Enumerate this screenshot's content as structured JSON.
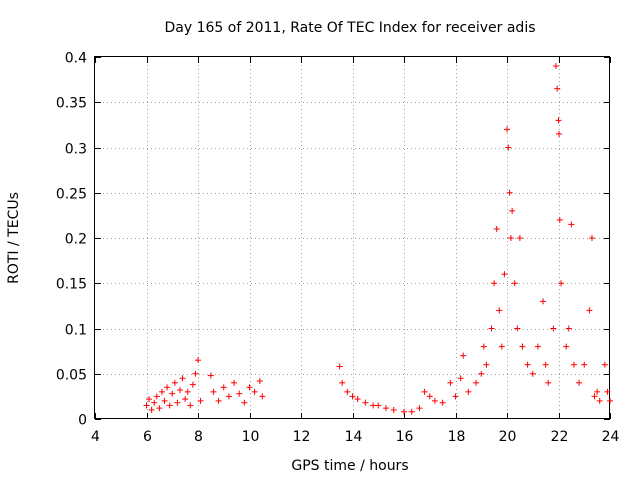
{
  "chart_data": {
    "type": "scatter",
    "title": "Day 165 of 2011, Rate Of TEC Index for receiver adis",
    "xlabel": "GPS time / hours",
    "ylabel": "ROTI / TECUs",
    "xlim": [
      4,
      24
    ],
    "ylim": [
      0,
      0.4
    ],
    "x_ticks": [
      4,
      6,
      8,
      10,
      12,
      14,
      16,
      18,
      20,
      22,
      24
    ],
    "y_ticks": [
      0,
      0.05,
      0.1,
      0.15,
      0.2,
      0.25,
      0.3,
      0.35,
      0.4
    ],
    "x_tick_labels": [
      "4",
      "6",
      "8",
      "10",
      "12",
      "14",
      "16",
      "18",
      "20",
      "22",
      "24"
    ],
    "y_tick_labels": [
      "0",
      "0.05",
      "0.1",
      "0.15",
      "0.2",
      "0.25",
      "0.3",
      "0.35",
      "0.4"
    ],
    "grid": true,
    "marker": "+",
    "color": "#ff0000",
    "series": [
      {
        "name": "ROTI",
        "points": [
          [
            6.0,
            0.015
          ],
          [
            6.1,
            0.022
          ],
          [
            6.2,
            0.01
          ],
          [
            6.3,
            0.018
          ],
          [
            6.4,
            0.025
          ],
          [
            6.5,
            0.012
          ],
          [
            6.6,
            0.03
          ],
          [
            6.7,
            0.02
          ],
          [
            6.8,
            0.035
          ],
          [
            6.9,
            0.015
          ],
          [
            7.0,
            0.028
          ],
          [
            7.1,
            0.04
          ],
          [
            7.2,
            0.018
          ],
          [
            7.3,
            0.032
          ],
          [
            7.4,
            0.045
          ],
          [
            7.5,
            0.022
          ],
          [
            7.6,
            0.03
          ],
          [
            7.7,
            0.015
          ],
          [
            7.8,
            0.038
          ],
          [
            7.9,
            0.05
          ],
          [
            8.0,
            0.065
          ],
          [
            8.1,
            0.02
          ],
          [
            8.5,
            0.048
          ],
          [
            8.6,
            0.03
          ],
          [
            8.8,
            0.02
          ],
          [
            9.0,
            0.035
          ],
          [
            9.2,
            0.025
          ],
          [
            9.4,
            0.04
          ],
          [
            9.6,
            0.028
          ],
          [
            9.8,
            0.018
          ],
          [
            10.0,
            0.035
          ],
          [
            10.2,
            0.03
          ],
          [
            10.4,
            0.042
          ],
          [
            10.5,
            0.025
          ],
          [
            13.5,
            0.058
          ],
          [
            13.6,
            0.04
          ],
          [
            13.8,
            0.03
          ],
          [
            14.0,
            0.025
          ],
          [
            14.2,
            0.022
          ],
          [
            14.5,
            0.018
          ],
          [
            14.8,
            0.015
          ],
          [
            15.0,
            0.015
          ],
          [
            15.3,
            0.012
          ],
          [
            15.6,
            0.01
          ],
          [
            16.0,
            0.008
          ],
          [
            16.3,
            0.008
          ],
          [
            16.6,
            0.012
          ],
          [
            16.8,
            0.03
          ],
          [
            17.0,
            0.025
          ],
          [
            17.2,
            0.02
          ],
          [
            17.5,
            0.018
          ],
          [
            17.8,
            0.04
          ],
          [
            18.0,
            0.025
          ],
          [
            18.2,
            0.045
          ],
          [
            18.3,
            0.07
          ],
          [
            18.5,
            0.03
          ],
          [
            18.8,
            0.04
          ],
          [
            19.0,
            0.05
          ],
          [
            19.1,
            0.08
          ],
          [
            19.2,
            0.06
          ],
          [
            19.4,
            0.1
          ],
          [
            19.5,
            0.15
          ],
          [
            19.6,
            0.21
          ],
          [
            19.7,
            0.12
          ],
          [
            19.8,
            0.08
          ],
          [
            19.9,
            0.16
          ],
          [
            20.0,
            0.32
          ],
          [
            20.05,
            0.3
          ],
          [
            20.1,
            0.25
          ],
          [
            20.15,
            0.2
          ],
          [
            20.2,
            0.23
          ],
          [
            20.3,
            0.15
          ],
          [
            20.4,
            0.1
          ],
          [
            20.5,
            0.2
          ],
          [
            20.6,
            0.08
          ],
          [
            20.8,
            0.06
          ],
          [
            21.0,
            0.05
          ],
          [
            21.2,
            0.08
          ],
          [
            21.4,
            0.13
          ],
          [
            21.5,
            0.06
          ],
          [
            21.6,
            0.04
          ],
          [
            21.8,
            0.1
          ],
          [
            21.9,
            0.39
          ],
          [
            21.95,
            0.365
          ],
          [
            22.0,
            0.33
          ],
          [
            22.02,
            0.315
          ],
          [
            22.05,
            0.22
          ],
          [
            22.1,
            0.15
          ],
          [
            22.3,
            0.08
          ],
          [
            22.4,
            0.1
          ],
          [
            22.5,
            0.215
          ],
          [
            22.6,
            0.06
          ],
          [
            22.8,
            0.04
          ],
          [
            23.0,
            0.06
          ],
          [
            23.2,
            0.12
          ],
          [
            23.3,
            0.2
          ],
          [
            23.4,
            0.025
          ],
          [
            23.5,
            0.03
          ],
          [
            23.6,
            0.02
          ],
          [
            23.8,
            0.06
          ],
          [
            23.9,
            0.03
          ],
          [
            24.0,
            0.02
          ]
        ]
      }
    ]
  }
}
